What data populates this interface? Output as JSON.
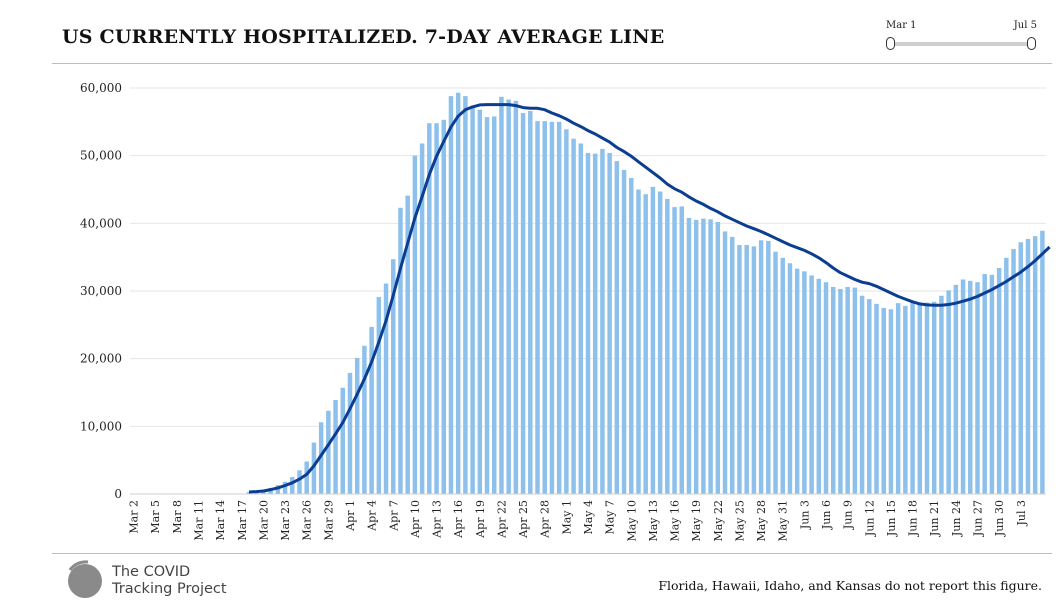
{
  "header": {
    "title": "US CURRENTLY HOSPITALIZED. 7-DAY AVERAGE LINE"
  },
  "date_slider": {
    "start_label": "Mar 1",
    "end_label": "Jul 5"
  },
  "footer": {
    "logo_line1": "The COVID",
    "logo_line2": "Tracking Project",
    "note": "Florida, Hawaii, Idaho, and Kansas do not report this figure."
  },
  "colors": {
    "bar": "#8dc0ea",
    "line": "#0b3d91",
    "grid": "#e6e6e6"
  },
  "chart_data": {
    "type": "bar",
    "title": "US CURRENTLY HOSPITALIZED. 7-DAY AVERAGE LINE",
    "ylim": [
      0,
      60000
    ],
    "yticks": [
      0,
      10000,
      20000,
      30000,
      40000,
      50000,
      60000
    ],
    "ytick_labels": [
      "0",
      "10,000",
      "20,000",
      "30,000",
      "40,000",
      "50,000",
      "60,000"
    ],
    "x_start": "Mar 2",
    "x_end": "Jul 10",
    "xtick_labels": [
      "Mar 2",
      "Mar 5",
      "Mar 8",
      "Mar 11",
      "Mar 14",
      "Mar 17",
      "Mar 20",
      "Mar 23",
      "Mar 26",
      "Mar 29",
      "Apr 1",
      "Apr 4",
      "Apr 7",
      "Apr 10",
      "Apr 13",
      "Apr 16",
      "Apr 19",
      "Apr 22",
      "Apr 25",
      "Apr 28",
      "May 1",
      "May 4",
      "May 7",
      "May 10",
      "May 13",
      "May 16",
      "May 19",
      "May 22",
      "May 25",
      "May 28",
      "May 31",
      "Jun 3",
      "Jun 6",
      "Jun 9",
      "Jun 12",
      "Jun 15",
      "Jun 18",
      "Jun 21",
      "Jun 24",
      "Jun 27",
      "Jun 30",
      "Jul 3"
    ],
    "grid": true,
    "series": [
      {
        "type": "bar",
        "values": [
          0,
          0,
          0,
          0,
          0,
          0,
          0,
          0,
          0,
          0,
          0,
          0,
          0,
          0,
          0,
          0,
          300,
          400,
          600,
          900,
          1300,
          1800,
          2500,
          3500,
          4800,
          7600,
          10600,
          12300,
          13900,
          15700,
          17900,
          20100,
          21900,
          24700,
          29100,
          31100,
          34700,
          42300,
          44100,
          50000,
          51800,
          54800,
          54800,
          55300,
          58800,
          59300,
          58800,
          57400,
          56800,
          55700,
          55800,
          58700,
          58300,
          58100,
          56300,
          56600,
          55100,
          55100,
          55000,
          55000,
          53900,
          52500,
          51800,
          50400,
          50300,
          51000,
          50400,
          49200,
          47900,
          46700,
          45000,
          44300,
          45400,
          44700,
          43600,
          42400,
          42500,
          40800,
          40500,
          40700,
          40600,
          40200,
          38800,
          38000,
          36800,
          36800,
          36600,
          37500,
          37400,
          35800,
          34900,
          34100,
          33300,
          32900,
          32300,
          31800,
          31300,
          30600,
          30300,
          30600,
          30500,
          29300,
          28800,
          28100,
          27500,
          27300,
          28200,
          27800,
          28500,
          28100,
          28300,
          28400,
          29300,
          30100,
          30900,
          31700,
          31500,
          31300,
          32500,
          32400,
          33400,
          34900,
          36200,
          37200,
          37700,
          38100,
          38900
        ]
      },
      {
        "type": "line",
        "values": [
          null,
          null,
          null,
          null,
          null,
          null,
          null,
          null,
          null,
          null,
          null,
          null,
          null,
          null,
          null,
          null,
          300,
          350,
          450,
          650,
          900,
          1250,
          1650,
          2200,
          2900,
          4150,
          5700,
          7250,
          8900,
          10550,
          12600,
          14750,
          17000,
          19500,
          22450,
          25600,
          29400,
          33350,
          37100,
          40800,
          43950,
          47200,
          49900,
          52100,
          54250,
          55850,
          56800,
          57200,
          57500,
          57550,
          57550,
          57550,
          57550,
          57400,
          57100,
          57000,
          57000,
          56800,
          56300,
          55900,
          55400,
          54800,
          54300,
          53700,
          53200,
          52600,
          52000,
          51200,
          50600,
          49900,
          49100,
          48300,
          47500,
          46700,
          45800,
          45100,
          44600,
          43900,
          43300,
          42800,
          42200,
          41700,
          41100,
          40600,
          40100,
          39600,
          39200,
          38800,
          38300,
          37800,
          37300,
          36800,
          36400,
          36000,
          35500,
          34900,
          34200,
          33400,
          32700,
          32200,
          31700,
          31300,
          31100,
          30700,
          30200,
          29700,
          29200,
          28800,
          28400,
          28100,
          27950,
          27900,
          27900,
          28000,
          28200,
          28500,
          28800,
          29200,
          29700,
          30200,
          30800,
          31400,
          32100,
          32800,
          33600,
          34500,
          35500,
          36500
        ]
      }
    ]
  }
}
